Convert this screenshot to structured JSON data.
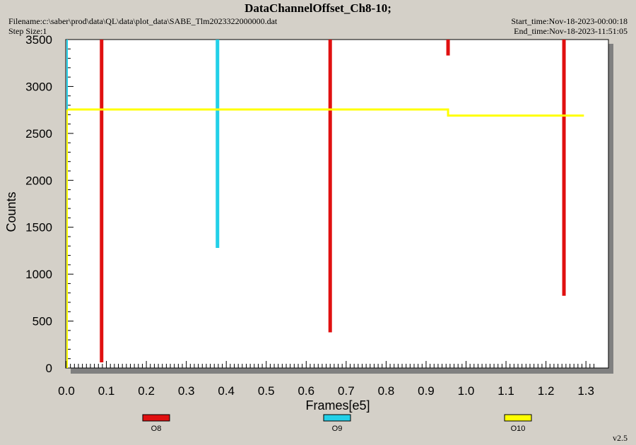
{
  "header": {
    "title": "DataChannelOffset_Ch8-10;",
    "filename": "Filename:c:\\saber\\prod\\data\\QL\\data\\plot_data\\SABE_Tlm2023322000000.dat",
    "step_size": "Step Size:1",
    "start_time": "Start_time:Nov-18-2023-00:00:18",
    "end_time": "End_time:Nov-18-2023-11:51:05"
  },
  "footer": {
    "version": "v2.5"
  },
  "chart_data": {
    "type": "line",
    "title": "DataChannelOffset_Ch8-10;",
    "xlabel": "Frames[e5]",
    "ylabel": "Counts",
    "xlim": [
      0.0,
      1.36
    ],
    "ylim": [
      0,
      3500
    ],
    "x_ticks": [
      "0.0",
      "0.1",
      "0.2",
      "0.3",
      "0.4",
      "0.5",
      "0.6",
      "0.7",
      "0.8",
      "0.9",
      "1.0",
      "1.1",
      "1.2",
      "1.3"
    ],
    "y_ticks": [
      "0",
      "500",
      "1000",
      "1500",
      "2000",
      "2500",
      "3000",
      "3500"
    ],
    "grid": false,
    "legend_position": "bottom",
    "series": [
      {
        "name": "O8",
        "color": "#e01010",
        "segments": [
          {
            "x": 0.088,
            "y_from": 3500,
            "y_to": 60
          },
          {
            "x": 0.66,
            "y_from": 3500,
            "y_to": 380
          },
          {
            "x": 0.955,
            "y_from": 3500,
            "y_to": 3330
          },
          {
            "x": 1.245,
            "y_from": 3500,
            "y_to": 770
          }
        ]
      },
      {
        "name": "O9",
        "color": "#22d0e8",
        "segments": [
          {
            "x": 0.378,
            "y_from": 3500,
            "y_to": 1280
          }
        ]
      },
      {
        "name": "O10",
        "color": "#ffff00",
        "points": [
          [
            0.0,
            2755
          ],
          [
            0.955,
            2755
          ],
          [
            0.955,
            2690
          ],
          [
            1.295,
            2690
          ]
        ]
      }
    ]
  }
}
